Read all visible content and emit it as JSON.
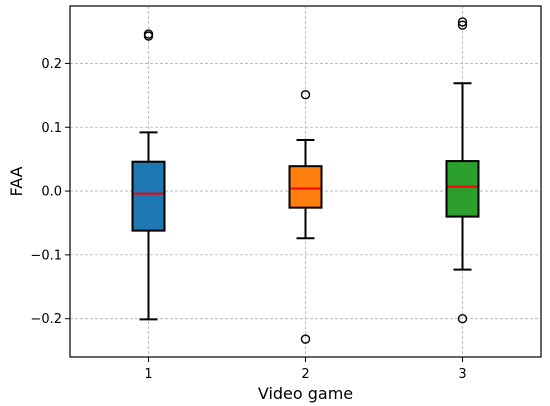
{
  "chart_data": {
    "type": "box",
    "title": "",
    "xlabel": "Video game",
    "ylabel": "FAA",
    "categories": [
      "1",
      "2",
      "3"
    ],
    "ylim": [
      -0.26,
      0.29
    ],
    "yticks": [
      -0.2,
      -0.1,
      0.0,
      0.1,
      0.2
    ],
    "ytick_labels": [
      "−0.2",
      "−0.1",
      "0.0",
      "0.1",
      "0.2"
    ],
    "grid": true,
    "boxes": [
      {
        "category": "1",
        "color": "#1f77b4",
        "whisker_low": -0.201,
        "q1": -0.062,
        "median": -0.004,
        "q3": 0.046,
        "whisker_high": 0.092,
        "outliers": [
          0.243,
          0.246
        ]
      },
      {
        "category": "2",
        "color": "#ff7f0e",
        "whisker_low": -0.074,
        "q1": -0.026,
        "median": 0.004,
        "q3": 0.039,
        "whisker_high": 0.08,
        "outliers": [
          0.151,
          -0.232
        ]
      },
      {
        "category": "3",
        "color": "#2ca02c",
        "whisker_low": -0.123,
        "q1": -0.04,
        "median": 0.007,
        "q3": 0.047,
        "whisker_high": 0.169,
        "outliers": [
          0.26,
          0.265,
          -0.2
        ]
      }
    ],
    "median_color": "#ff0000"
  }
}
